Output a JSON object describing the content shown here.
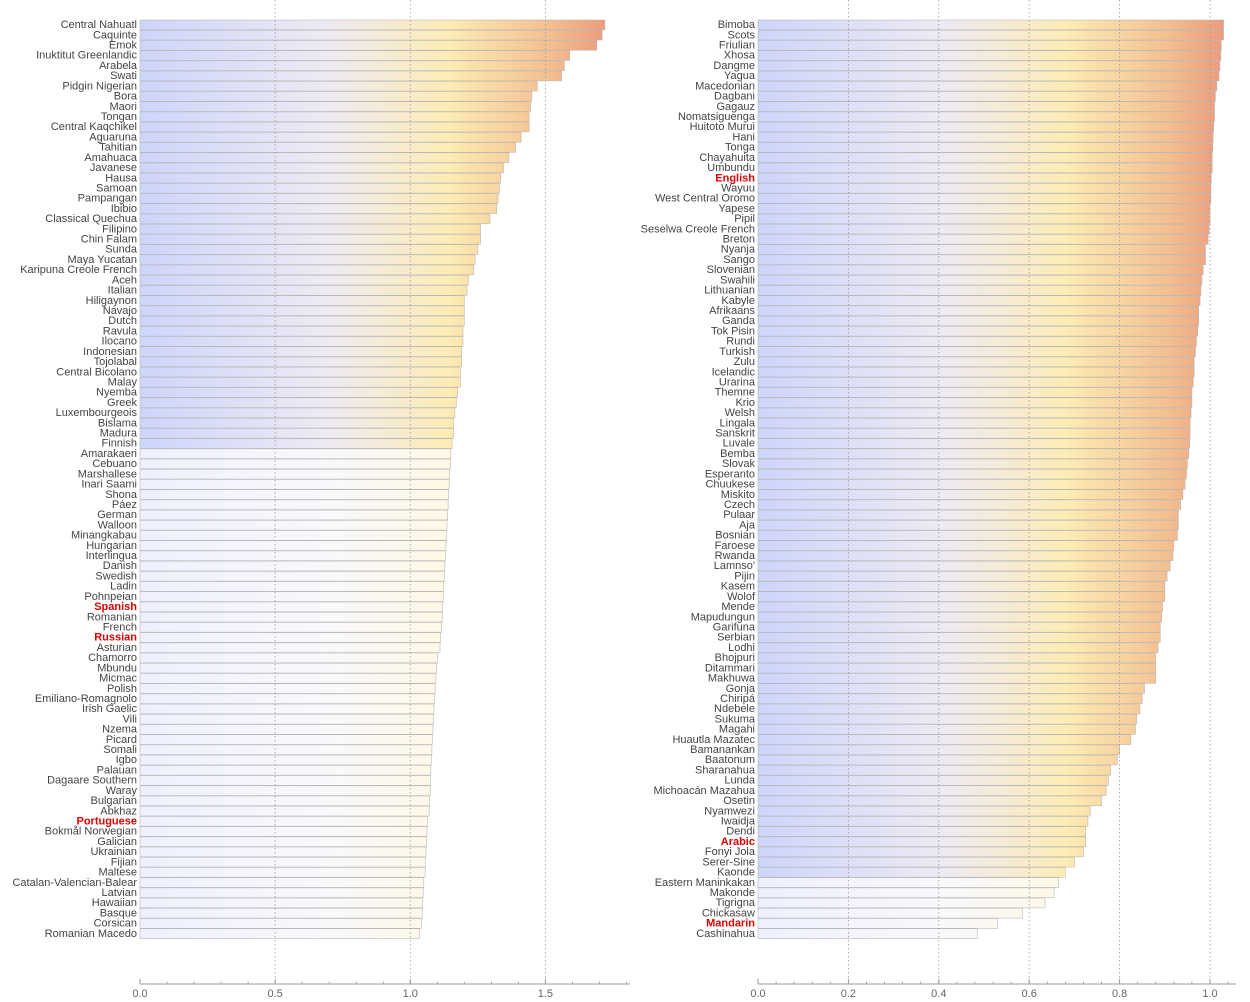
{
  "colors": {
    "gradient": [
      "#cdd5fb",
      "#eeeaf3",
      "#fdecb5",
      "#f3bf8f",
      "#ec9b7c"
    ],
    "highlight_text": "#dd0000",
    "label_text": "#444444",
    "gridline": "#9a9a9a",
    "bar_edge": "#b8b8b8"
  },
  "chart_data": [
    {
      "type": "bar",
      "orientation": "horizontal",
      "xlim": [
        0,
        1.8
      ],
      "ticks": [
        0.0,
        0.5,
        1.0,
        1.5
      ],
      "tick_labels": [
        "0.0",
        "0.5",
        "1.0",
        "1.5"
      ],
      "gridlines": [
        0.5,
        1.0,
        1.5
      ],
      "highlighted": [
        "Spanish",
        "Russian",
        "Portuguese"
      ],
      "faded_after_index": 42,
      "categories": [
        "Central Nahuatl",
        "Caquinte",
        "Emok",
        "Inuktitut Greenlandic",
        "Arabela",
        "Swati",
        "Pidgin Nigerian",
        "Bora",
        "Maori",
        "Tongan",
        "Central Kaqchikel",
        "Aguaruna",
        "Tahitian",
        "Amahuaca",
        "Javanese",
        "Hausa",
        "Samoan",
        "Pampangan",
        "Ibibio",
        "Classical Quechua",
        "Filipino",
        "Chin Falam",
        "Sunda",
        "Maya Yucatan",
        "Karipuna Creole French",
        "Aceh",
        "Italian",
        "Hiligaynon",
        "Navajo",
        "Dutch",
        "Ravula",
        "Ilocano",
        "Indonesian",
        "Tojolabal",
        "Central Bicolano",
        "Malay",
        "Nyemba",
        "Greek",
        "Luxembourgeois",
        "Bislama",
        "Madura",
        "Finnish",
        "Amarakaeri",
        "Cebuano",
        "Marshallese",
        "Inari Saami",
        "Shona",
        "Páez",
        "German",
        "Walloon",
        "Minangkabau",
        "Hungarian",
        "Interlingua",
        "Danish",
        "Swedish",
        "Ladin",
        "Pohnpeian",
        "Spanish",
        "Romanian",
        "French",
        "Russian",
        "Asturian",
        "Chamorro",
        "Mbundu",
        "Micmac",
        "Polish",
        "Emiliano-Romagnolo",
        "Irish Gaelic",
        "Vili",
        "Nzema",
        "Picard",
        "Somali",
        "Igbo",
        "Palauan",
        "Dagaare Southern",
        "Waray",
        "Bulgarian",
        "Abkhaz",
        "Portuguese",
        "Bokmål Norwegian",
        "Galician",
        "Ukrainian",
        "Fijian",
        "Maltese",
        "Catalan-Valencian-Balear",
        "Latvian",
        "Hawaiian",
        "Basque",
        "Corsican",
        "Romanian Macedo"
      ],
      "values": [
        1.72,
        1.71,
        1.69,
        1.59,
        1.57,
        1.56,
        1.47,
        1.45,
        1.445,
        1.44,
        1.44,
        1.41,
        1.39,
        1.365,
        1.345,
        1.335,
        1.33,
        1.325,
        1.32,
        1.295,
        1.26,
        1.26,
        1.25,
        1.24,
        1.235,
        1.215,
        1.21,
        1.2,
        1.2,
        1.2,
        1.195,
        1.195,
        1.19,
        1.19,
        1.185,
        1.185,
        1.175,
        1.17,
        1.165,
        1.16,
        1.16,
        1.155,
        1.15,
        1.148,
        1.146,
        1.144,
        1.142,
        1.14,
        1.138,
        1.136,
        1.134,
        1.132,
        1.13,
        1.128,
        1.126,
        1.124,
        1.122,
        1.12,
        1.118,
        1.116,
        1.112,
        1.11,
        1.1,
        1.098,
        1.095,
        1.092,
        1.09,
        1.088,
        1.086,
        1.084,
        1.082,
        1.08,
        1.078,
        1.076,
        1.075,
        1.074,
        1.072,
        1.07,
        1.065,
        1.062,
        1.06,
        1.058,
        1.056,
        1.055,
        1.05,
        1.048,
        1.046,
        1.044,
        1.042,
        1.035
      ]
    },
    {
      "type": "bar",
      "orientation": "horizontal",
      "xlim": [
        0,
        1.06
      ],
      "ticks": [
        0.0,
        0.2,
        0.4,
        0.6,
        0.8,
        1.0
      ],
      "tick_labels": [
        "0.0",
        "0.2",
        "0.4",
        "0.6",
        "0.8",
        "1.0"
      ],
      "gridlines": [
        0.2,
        0.4,
        0.6,
        0.8,
        1.0
      ],
      "highlighted": [
        "English",
        "Arabic",
        "Mandarin"
      ],
      "faded_after_index": 84,
      "categories": [
        "Bimoba",
        "Scots",
        "Friulian",
        "Xhosa",
        "Dangme",
        "Yagua",
        "Macedonian",
        "Dagbani",
        "Gagauz",
        "Nomatsiguenga",
        "Huitoto Murui",
        "Hani",
        "Tonga",
        "Chayahuita",
        "Umbundu",
        "English",
        "Wayuu",
        "West Central Oromo",
        "Yapese",
        "Pipil",
        "Seselwa Creole French",
        "Breton",
        "Nyanja",
        "Sango",
        "Slovenian",
        "Swahili",
        "Lithuanian",
        "Kabyle",
        "Afrikaans",
        "Ganda",
        "Tok Pisin",
        "Rundi",
        "Turkish",
        "Zulu",
        "Icelandic",
        "Urarina",
        "Themne",
        "Krio",
        "Welsh",
        "Lingala",
        "Sanskrit",
        "Luvale",
        "Bemba",
        "Slovak",
        "Esperanto",
        "Chuukese",
        "Miskito",
        "Czech",
        "Pulaar",
        "Aja",
        "Bosnian",
        "Faroese",
        "Rwanda",
        "Lamnso'",
        "Pijin",
        "Kasem",
        "Wolof",
        "Mende",
        "Mapudungun",
        "Garifuna",
        "Serbian",
        "Lodhi",
        "Bhojpuri",
        "Ditammari",
        "Makhuwa",
        "Gonja",
        "Chiripá",
        "Ndebele",
        "Sukuma",
        "Magahi",
        "Huautla Mazatec",
        "Bamanankan",
        "Baatonum",
        "Sharanahua",
        "Lunda",
        "Michoacán Mazahua",
        "Osetin",
        "Nyamwezi",
        "Iwaidja",
        "Dendi",
        "Arabic",
        "Fonyi Jola",
        "Serer-Sine",
        "Kaonde",
        "Eastern Maninkakan",
        "Makonde",
        "Tigrigna",
        "Chickasaw",
        "Mandarin",
        "Cashinahua"
      ],
      "values": [
        1.03,
        1.03,
        1.025,
        1.024,
        1.022,
        1.02,
        1.015,
        1.012,
        1.01,
        1.01,
        1.008,
        1.007,
        1.006,
        1.005,
        1.005,
        1.003,
        1.002,
        1.002,
        1.0,
        1.0,
        0.998,
        0.996,
        0.99,
        0.99,
        0.985,
        0.982,
        0.98,
        0.978,
        0.975,
        0.975,
        0.973,
        0.97,
        0.968,
        0.965,
        0.965,
        0.963,
        0.96,
        0.96,
        0.958,
        0.956,
        0.956,
        0.955,
        0.953,
        0.95,
        0.948,
        0.945,
        0.94,
        0.935,
        0.93,
        0.93,
        0.928,
        0.92,
        0.918,
        0.912,
        0.905,
        0.9,
        0.9,
        0.895,
        0.893,
        0.89,
        0.89,
        0.885,
        0.88,
        0.88,
        0.88,
        0.855,
        0.85,
        0.845,
        0.838,
        0.835,
        0.825,
        0.8,
        0.795,
        0.78,
        0.775,
        0.77,
        0.76,
        0.735,
        0.73,
        0.725,
        0.725,
        0.72,
        0.7,
        0.68,
        0.665,
        0.655,
        0.635,
        0.585,
        0.53,
        0.485
      ]
    }
  ]
}
